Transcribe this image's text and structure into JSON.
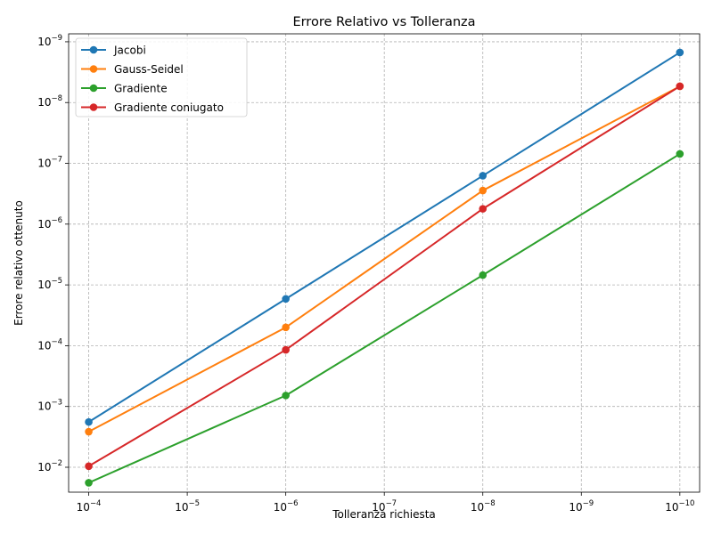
{
  "chart_data": {
    "type": "line",
    "title": "Errore Relativo vs Tolleranza",
    "xlabel": "Tolleranza richiesta",
    "ylabel": "Errore relativo ottenuto",
    "x_scale": "log",
    "y_scale": "log",
    "x_inverted": true,
    "y_inverted": true,
    "x_ticks": [
      0.0001,
      1e-05,
      1e-06,
      1e-07,
      1e-08,
      1e-09,
      1e-10
    ],
    "y_ticks": [
      0.01,
      0.001,
      0.0001,
      1e-05,
      1e-06,
      1e-07,
      1e-08,
      1e-09
    ],
    "xlim": [
      0.00016,
      6.3e-11
    ],
    "ylim": [
      0.0257,
      7.4e-10
    ],
    "grid": true,
    "legend_position": "upper-left",
    "x": [
      0.0001,
      1e-06,
      1e-08,
      1e-10
    ],
    "series": [
      {
        "name": "Jacobi",
        "color": "#1f77b4",
        "values": [
          0.0018,
          1.7e-05,
          1.6e-07,
          1.5e-09
        ]
      },
      {
        "name": "Gauss-Seidel",
        "color": "#ff7f0e",
        "values": [
          0.0026,
          5e-05,
          2.8e-07,
          5.4e-09
        ]
      },
      {
        "name": "Gradiente",
        "color": "#2ca02c",
        "values": [
          0.018,
          0.00066,
          6.9e-06,
          7e-08
        ]
      },
      {
        "name": "Gradiente coniugato",
        "color": "#d62728",
        "values": [
          0.0096,
          0.000117,
          5.6e-07,
          5.4e-09
        ]
      }
    ]
  }
}
